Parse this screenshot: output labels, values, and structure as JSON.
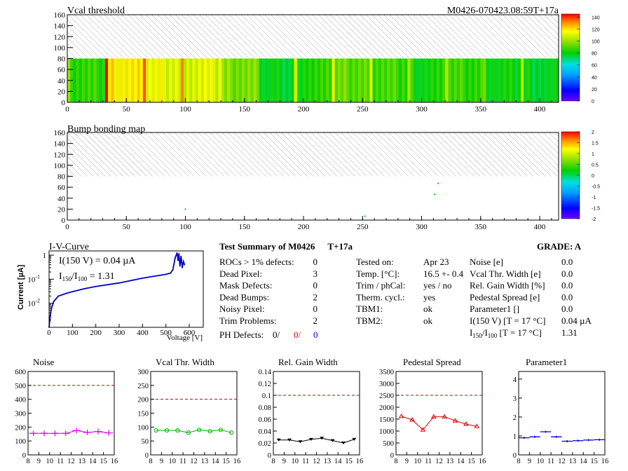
{
  "header": {
    "map1_title": "Vcal threshold",
    "module_id": "M0426-070423.08:59T+17a",
    "map2_title": "Bump bonding map"
  },
  "colors": {
    "noise": "#e000e0",
    "vcal": "#00b000",
    "gain": "#000000",
    "pedestal": "#e00000",
    "parameter1": "#0000d0",
    "iv": "#0000c8",
    "limit": "#c00000",
    "defect_red": "#e00000",
    "defect_blue": "#0000d0"
  },
  "iv_panel": {
    "title": "I-V-Curve",
    "ylabel": "Current [µA]",
    "xlabel": "Voltage [V]",
    "ann1": "I(150 V) = 0.04 µA",
    "ann2_main": "I",
    "ann2_sub1": "150",
    "ann2_sep": "/I",
    "ann2_sub2": "100",
    "ann2_val": " =  1.31"
  },
  "summary": {
    "title": "Test Summary of M0426",
    "tag": "T+17a",
    "grade_label": "GRADE:  A",
    "col1": [
      {
        "label": "ROCs > 1% defects:",
        "value": "0"
      },
      {
        "label": "Dead Pixel:",
        "value": "3"
      },
      {
        "label": "Mask Defects:",
        "value": "0"
      },
      {
        "label": "Dead Bumps:",
        "value": "2"
      },
      {
        "label": "Noisy Pixel:",
        "value": "0"
      },
      {
        "label": "Trim Problems:",
        "value": "2"
      }
    ],
    "ph_defects": {
      "label": "PH Defects:",
      "v1": "0/",
      "v2": "0/",
      "v3": "0"
    },
    "col2": [
      {
        "label": "Tested on:",
        "value": "Apr 23"
      },
      {
        "label": "Temp. [°C]:",
        "value": "16.5 +- 0.4"
      },
      {
        "label": "Trim / phCal:",
        "value": "yes / no"
      },
      {
        "label": "Therm. cycl.:",
        "value": "yes"
      },
      {
        "label": "TBM1:",
        "value": "ok"
      },
      {
        "label": "TBM2:",
        "value": "ok"
      }
    ],
    "col3": [
      {
        "label": "Noise [e]",
        "value": "0.0"
      },
      {
        "label": "Vcal Thr. Width [e]",
        "value": "0.0"
      },
      {
        "label": "Rel. Gain Width [%]",
        "value": "0.0"
      },
      {
        "label": "Pedestal Spread [e]",
        "value": "0.0"
      },
      {
        "label": "Parameter1 []",
        "value": "0.0"
      },
      {
        "label": "I(150 V) [T = 17 °C]",
        "value": "0.04 µA"
      }
    ],
    "ratio_row": {
      "main": "I",
      "sub1": "150",
      "sep": "/I",
      "sub2": "100",
      "rest": " [T = 17 °C]",
      "value": "1.31"
    }
  },
  "chart_data": [
    {
      "type": "heatmap",
      "title": "Vcal threshold",
      "xlim": [
        0,
        416
      ],
      "ylim": [
        0,
        160
      ],
      "filled_rows": [
        0,
        80
      ],
      "xticks": [
        0,
        50,
        100,
        150,
        200,
        250,
        300,
        350,
        400
      ],
      "yticks": [
        0,
        20,
        40,
        60,
        80,
        100,
        120,
        140,
        160
      ],
      "zlim": [
        0,
        145
      ],
      "zticks": [
        0,
        20,
        40,
        60,
        80,
        100,
        120,
        140
      ],
      "roc_mean_values": [
        85,
        118,
        112,
        110,
        96,
        78,
        84,
        92,
        88,
        82,
        86,
        80,
        78
      ]
    },
    {
      "type": "scatter",
      "title": "Bump bonding map",
      "xlim": [
        0,
        416
      ],
      "ylim": [
        0,
        160
      ],
      "xticks": [
        0,
        50,
        100,
        150,
        200,
        250,
        300,
        350,
        400
      ],
      "yticks": [
        0,
        20,
        40,
        60,
        80,
        100,
        120,
        140,
        160
      ],
      "zlim": [
        -2,
        2
      ],
      "zticks": [
        "2",
        "1.5",
        "1",
        "0.5",
        "0",
        "-0.5",
        "-1",
        "-1.5",
        "-2"
      ],
      "points": [
        {
          "x": 100,
          "y": 20
        },
        {
          "x": 252,
          "y": 7
        },
        {
          "x": 311,
          "y": 47
        },
        {
          "x": 314,
          "y": 67
        }
      ]
    },
    {
      "type": "line",
      "title": "I-V-Curve",
      "xlabel": "Voltage [V]",
      "ylabel": "Current [µA]",
      "xlim": [
        0,
        660
      ],
      "ylim": [
        0.001,
        1.5
      ],
      "yscale": "log",
      "xticks": [
        0,
        100,
        200,
        300,
        400,
        500,
        600
      ],
      "yticks": [
        "10^-2",
        "10^-1",
        "1"
      ],
      "series": [
        {
          "x": [
            0,
            5,
            10,
            20,
            40,
            80,
            150,
            200,
            300,
            400,
            500,
            520,
            530,
            540,
            548,
            552,
            556,
            560,
            565,
            570,
            575,
            580
          ],
          "y": [
            0.001,
            0.003,
            0.006,
            0.012,
            0.02,
            0.027,
            0.04,
            0.05,
            0.07,
            0.11,
            0.16,
            0.18,
            0.25,
            0.8,
            1.25,
            0.6,
            1.15,
            0.35,
            0.9,
            0.3,
            0.55,
            0.4
          ]
        }
      ]
    },
    {
      "type": "line",
      "title": "Noise",
      "xlim": [
        8,
        16
      ],
      "ylim": [
        0,
        600
      ],
      "xticks": [
        8,
        9,
        10,
        11,
        12,
        13,
        14,
        15,
        16
      ],
      "yticks": [
        0,
        100,
        200,
        300,
        400,
        500,
        600
      ],
      "limit": 500,
      "series": [
        {
          "x": [
            8.5,
            9.5,
            10.5,
            11.5,
            12.5,
            13.5,
            14.5,
            15.5
          ],
          "y": [
            155,
            155,
            155,
            155,
            175,
            162,
            168,
            158
          ]
        }
      ]
    },
    {
      "type": "line",
      "title": "Vcal Thr. Width",
      "xlim": [
        8,
        16
      ],
      "ylim": [
        0,
        300
      ],
      "xticks": [
        8,
        9,
        10,
        11,
        12,
        13,
        14,
        15,
        16
      ],
      "yticks": [
        0,
        50,
        100,
        150,
        200,
        250,
        300
      ],
      "limit": 200,
      "series": [
        {
          "x": [
            8.5,
            9.5,
            10.5,
            11.5,
            12.5,
            13.5,
            14.5,
            15.5
          ],
          "y": [
            88,
            88,
            88,
            80,
            90,
            85,
            90,
            80
          ]
        }
      ]
    },
    {
      "type": "line",
      "title": "Rel. Gain Width",
      "xlim": [
        8,
        16
      ],
      "ylim": [
        0,
        0.14
      ],
      "xticks": [
        8,
        9,
        10,
        11,
        12,
        13,
        14,
        15,
        16
      ],
      "yticks": [
        0,
        0.02,
        0.04,
        0.06,
        0.08,
        0.1,
        0.12,
        0.14
      ],
      "limit": 0.1,
      "series": [
        {
          "x": [
            8.5,
            9.5,
            10.5,
            11.5,
            12.5,
            13.5,
            14.5,
            15.5
          ],
          "y": [
            0.025,
            0.025,
            0.022,
            0.026,
            0.028,
            0.024,
            0.02,
            0.026
          ]
        }
      ]
    },
    {
      "type": "line",
      "title": "Pedestal Spread",
      "xlim": [
        8,
        16
      ],
      "ylim": [
        0,
        3500
      ],
      "xticks": [
        8,
        9,
        10,
        11,
        12,
        13,
        14,
        15,
        16
      ],
      "yticks": [
        0,
        500,
        1000,
        1500,
        2000,
        2500,
        3000,
        3500
      ],
      "limit": 2500,
      "series": [
        {
          "x": [
            8.5,
            9.5,
            10.5,
            11.5,
            12.5,
            13.5,
            14.5,
            15.5
          ],
          "y": [
            1620,
            1470,
            1050,
            1600,
            1600,
            1430,
            1290,
            1200
          ]
        }
      ]
    },
    {
      "type": "line",
      "title": "Parameter1",
      "xlim": [
        8,
        16
      ],
      "ylim": [
        0,
        4.4
      ],
      "xticks": [
        8,
        9,
        10,
        11,
        12,
        13,
        14,
        15,
        16
      ],
      "yticks": [
        0,
        1,
        2,
        3,
        4
      ],
      "series": [
        {
          "x": [
            8.5,
            9.5,
            10.5,
            11.5,
            12.5,
            13.5,
            14.5,
            15.5
          ],
          "y": [
            0.9,
            0.95,
            1.22,
            0.95,
            0.72,
            0.75,
            0.78,
            0.8
          ]
        }
      ]
    }
  ]
}
